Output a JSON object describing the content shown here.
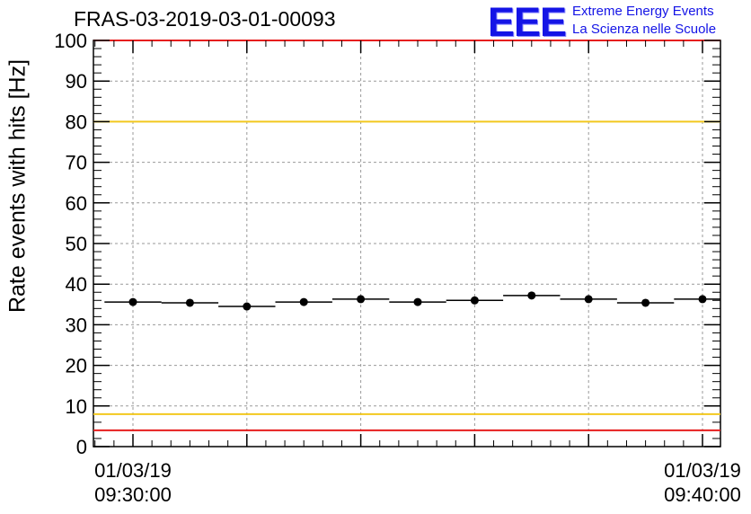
{
  "run_title": "FRAS-03-2019-03-01-00093",
  "logo": {
    "mark": "EEE",
    "line1": "Extreme Energy Events",
    "line2": "La Scienza nelle Scuole",
    "color": "#1414e6"
  },
  "chart_data": {
    "type": "scatter",
    "ylabel": "Rate events with hits [Hz]",
    "ylim": [
      0,
      100
    ],
    "y_ticks": [
      0,
      10,
      20,
      30,
      40,
      50,
      60,
      70,
      80,
      90,
      100
    ],
    "x_tick_labels": [
      {
        "date": "01/03/19",
        "time": "09:30:00"
      },
      {
        "date": "01/03/19",
        "time": "09:40:00"
      }
    ],
    "grid": true,
    "series": [
      {
        "marker": "filled-circle",
        "color": "#000000",
        "x": [
          "09:30:00",
          "09:31:00",
          "09:32:00",
          "09:33:00",
          "09:34:00",
          "09:35:00",
          "09:36:00",
          "09:37:00",
          "09:38:00",
          "09:39:00",
          "09:40:00"
        ],
        "y": [
          35.6,
          35.4,
          34.5,
          35.6,
          36.3,
          35.6,
          36.0,
          37.2,
          36.3,
          35.4,
          36.3
        ]
      }
    ],
    "reference_lines": [
      {
        "y": 100,
        "color": "#e61e1e"
      },
      {
        "y": 80,
        "color": "#f2c81e"
      },
      {
        "y": 8,
        "color": "#f2c81e"
      },
      {
        "y": 4,
        "color": "#e61e1e"
      }
    ]
  }
}
